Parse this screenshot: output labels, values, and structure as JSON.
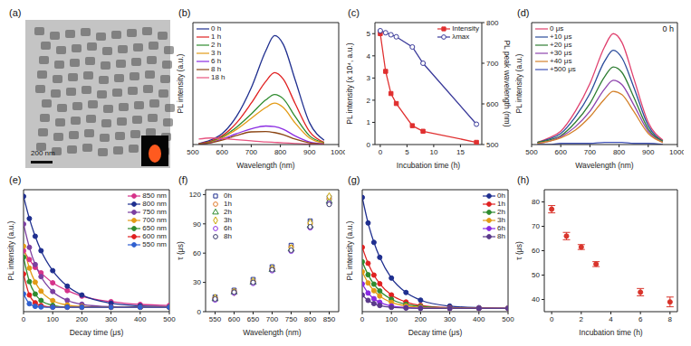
{
  "image": {
    "title": "(a)",
    "scale_bar": "200 nm"
  },
  "chart_data": [
    {
      "type": "line",
      "title": "(b)",
      "xlabel": "Wavelength (nm)",
      "ylabel": "PL intensity (a.u.)",
      "x": [
        520,
        560,
        600,
        650,
        700,
        750,
        780,
        810,
        850,
        900,
        950
      ],
      "xlim": [
        500,
        1000
      ],
      "xticks": [
        500,
        600,
        700,
        800,
        900,
        1000
      ],
      "ylim": [
        0,
        5.6
      ],
      "tick_labels": "x",
      "legend": "upper left",
      "line_style": "smooth",
      "series": [
        {
          "name": "0 h",
          "color": "#1f2f8f",
          "values": [
            0.05,
            0.2,
            0.5,
            1.3,
            2.6,
            4.3,
            5.0,
            4.6,
            3.0,
            1.0,
            0.2
          ]
        },
        {
          "name": "1 h",
          "color": "#e02020",
          "values": [
            0.04,
            0.15,
            0.4,
            1.0,
            1.9,
            2.9,
            3.3,
            3.0,
            1.9,
            0.6,
            0.1
          ]
        },
        {
          "name": "2 h",
          "color": "#2e8b2e",
          "values": [
            0.03,
            0.12,
            0.35,
            0.8,
            1.4,
            2.05,
            2.3,
            2.1,
            1.3,
            0.4,
            0.08
          ]
        },
        {
          "name": "3 h",
          "color": "#e39b16",
          "values": [
            0.03,
            0.1,
            0.3,
            0.7,
            1.2,
            1.7,
            1.9,
            1.7,
            1.0,
            0.3,
            0.06
          ]
        },
        {
          "name": "6 h",
          "color": "#8a2be2",
          "values": [
            0.02,
            0.08,
            0.25,
            0.5,
            0.72,
            0.85,
            0.82,
            0.7,
            0.4,
            0.12,
            0.03
          ]
        },
        {
          "name": "8 h",
          "color": "#8b4513",
          "values": [
            0.02,
            0.08,
            0.2,
            0.42,
            0.58,
            0.6,
            0.55,
            0.45,
            0.25,
            0.08,
            0.02
          ]
        },
        {
          "name": "18 h",
          "color": "#e75480",
          "values": [
            0.25,
            0.3,
            0.28,
            0.22,
            0.17,
            0.12,
            0.1,
            0.08,
            0.05,
            0.02,
            0.01
          ]
        }
      ]
    },
    {
      "type": "line",
      "title": "(c)",
      "xlabel": "Incubation time (h)",
      "ylabel": "PL intensity (x 10⁴, a.u.)",
      "y2label": "PL peak wavelength (nm)",
      "x": [
        0,
        1,
        2,
        3,
        6,
        8,
        18
      ],
      "xlim": [
        -1,
        19
      ],
      "xticks": [
        0,
        5,
        10,
        15
      ],
      "ylim": [
        0,
        5.5
      ],
      "yticks": [
        0,
        1,
        2,
        3,
        4,
        5
      ],
      "y2lim": [
        500,
        800
      ],
      "y2ticks": [
        500,
        600,
        700,
        800
      ],
      "legend": "upper right",
      "line_style": "solid",
      "series": [
        {
          "name": "Intensity",
          "color": "#e03030",
          "marker": "square",
          "values": [
            5.0,
            3.3,
            2.3,
            1.85,
            0.85,
            0.6,
            0.1
          ]
        },
        {
          "name": "λmax",
          "color": "#3a3a9a",
          "marker": "circle",
          "axis": "y2",
          "values": [
            780,
            775,
            770,
            765,
            740,
            700,
            550
          ]
        }
      ]
    },
    {
      "type": "line",
      "title": "(d)",
      "annotation": "0 h",
      "xlabel": "Wavelength (nm)",
      "ylabel": "PL intensity (a.u.)",
      "x": [
        520,
        560,
        600,
        650,
        700,
        750,
        780,
        810,
        850,
        900,
        950
      ],
      "xlim": [
        500,
        1000
      ],
      "xticks": [
        500,
        600,
        700,
        800,
        900,
        1000
      ],
      "ylim": [
        0,
        1.1
      ],
      "tick_labels": "x",
      "legend": "upper left",
      "line_style": "smooth",
      "series": [
        {
          "name": "0 μs",
          "color": "#e0406e",
          "values": [
            0.02,
            0.06,
            0.12,
            0.3,
            0.55,
            0.88,
            1.0,
            0.92,
            0.6,
            0.2,
            0.04
          ]
        },
        {
          "name": "+10 μs",
          "color": "#2b4c9b",
          "values": [
            0.02,
            0.05,
            0.1,
            0.25,
            0.46,
            0.75,
            0.85,
            0.78,
            0.52,
            0.17,
            0.03
          ]
        },
        {
          "name": "+20 μs",
          "color": "#2e7d32",
          "values": [
            0.02,
            0.04,
            0.08,
            0.2,
            0.37,
            0.61,
            0.7,
            0.65,
            0.43,
            0.14,
            0.03
          ]
        },
        {
          "name": "+30 μs",
          "color": "#8e44ad",
          "values": [
            0.01,
            0.03,
            0.07,
            0.16,
            0.3,
            0.5,
            0.58,
            0.54,
            0.36,
            0.12,
            0.02
          ]
        },
        {
          "name": "+40 μs",
          "color": "#d4812a",
          "values": [
            0.01,
            0.03,
            0.06,
            0.13,
            0.25,
            0.41,
            0.48,
            0.45,
            0.3,
            0.1,
            0.02
          ]
        },
        {
          "name": "+500 μs",
          "color": "#3f51b5",
          "values": [
            0.0,
            0.0,
            0.01,
            0.01,
            0.01,
            0.02,
            0.02,
            0.02,
            0.01,
            0.01,
            0.0
          ]
        }
      ]
    },
    {
      "type": "line",
      "title": "(e)",
      "xlabel": "Decay time (μs)",
      "ylabel": "PL intensity (a.u.)",
      "x": [
        0,
        20,
        40,
        60,
        100,
        150,
        200,
        300,
        400,
        500
      ],
      "xlim": [
        0,
        500
      ],
      "xticks": [
        0,
        100,
        200,
        300,
        400,
        500
      ],
      "ylim": [
        0,
        1.1
      ],
      "tick_labels": "x",
      "legend": "upper right",
      "line_style": "smooth",
      "series": [
        {
          "name": "850 nm",
          "color": "#d6338a",
          "marker": "circle",
          "values": [
            0.55,
            0.47,
            0.4,
            0.35,
            0.26,
            0.19,
            0.14,
            0.09,
            0.065,
            0.056
          ]
        },
        {
          "name": "800 nm",
          "color": "#1f2f8f",
          "marker": "circle",
          "values": [
            1.04,
            0.84,
            0.68,
            0.55,
            0.37,
            0.23,
            0.15,
            0.076,
            0.052,
            0.044
          ]
        },
        {
          "name": "750 nm",
          "color": "#7b3fa0",
          "marker": "circle",
          "values": [
            0.79,
            0.58,
            0.425,
            0.316,
            0.182,
            0.102,
            0.067,
            0.045,
            0.04,
            0.04
          ]
        },
        {
          "name": "700 nm",
          "color": "#e39b16",
          "marker": "circle",
          "values": [
            0.59,
            0.393,
            0.266,
            0.185,
            0.1,
            0.06,
            0.047,
            0.04,
            0.04,
            0.04
          ]
        },
        {
          "name": "650 nm",
          "color": "#2e8b2e",
          "marker": "circle",
          "values": [
            0.49,
            0.271,
            0.159,
            0.101,
            0.056,
            0.042,
            0.04,
            0.04,
            0.04,
            0.04
          ]
        },
        {
          "name": "600 nm",
          "color": "#e02020",
          "marker": "circle",
          "values": [
            0.34,
            0.15,
            0.08,
            0.055,
            0.041,
            0.04,
            0.04,
            0.04,
            0.04,
            0.04
          ]
        },
        {
          "name": "550 nm",
          "color": "#3060d0",
          "marker": "circle",
          "values": [
            0.16,
            0.072,
            0.048,
            0.042,
            0.04,
            0.04,
            0.04,
            0.04,
            0.04,
            0.04
          ]
        }
      ]
    },
    {
      "type": "scatter",
      "title": "(f)",
      "xlabel": "Wavelength (nm)",
      "ylabel": "τ (μs)",
      "x": [
        550,
        600,
        650,
        700,
        750,
        800,
        850
      ],
      "xlim": [
        525,
        875
      ],
      "xticks": [
        550,
        600,
        650,
        700,
        750,
        800,
        850
      ],
      "ylim": [
        0,
        125
      ],
      "yticks": [
        0,
        30,
        60,
        90,
        120
      ],
      "legend": "upper left",
      "series": [
        {
          "name": "0h",
          "color": "#1f2f8f",
          "marker": "square",
          "values": [
            15,
            22,
            33,
            46,
            68,
            93,
            117
          ]
        },
        {
          "name": "1h",
          "color": "#e0792a",
          "marker": "circle",
          "values": [
            14,
            21,
            31,
            44,
            66,
            90,
            115
          ]
        },
        {
          "name": "2h",
          "color": "#2e8b2e",
          "marker": "triangle",
          "values": [
            13,
            20,
            30,
            43,
            64,
            88,
            113
          ]
        },
        {
          "name": "3h",
          "color": "#c9a400",
          "marker": "diamond",
          "values": [
            14,
            20,
            31,
            44,
            65,
            91,
            118
          ]
        },
        {
          "name": "6h",
          "color": "#8a2be2",
          "marker": "circle",
          "values": [
            12,
            19,
            29,
            42,
            62,
            86,
            111
          ]
        },
        {
          "name": "8h",
          "color": "#333366",
          "marker": "circle",
          "values": [
            13,
            20,
            30,
            43,
            63,
            87,
            110
          ]
        }
      ]
    },
    {
      "type": "line",
      "title": "(g)",
      "xlabel": "Decay time (μs)",
      "ylabel": "PL intensity (a.u.)",
      "x": [
        0,
        20,
        40,
        60,
        100,
        150,
        200,
        300,
        400,
        500
      ],
      "xlim": [
        0,
        500
      ],
      "xticks": [
        0,
        100,
        200,
        300,
        400,
        500
      ],
      "ylim": [
        0,
        1.1
      ],
      "tick_labels": "x",
      "legend": "upper right",
      "line_style": "smooth",
      "series": [
        {
          "name": "0h",
          "color": "#1f2f8f",
          "marker": "circle",
          "values": [
            1.03,
            0.8,
            0.625,
            0.49,
            0.303,
            0.173,
            0.104,
            0.05,
            0.036,
            0.032
          ]
        },
        {
          "name": "1h",
          "color": "#e02020",
          "marker": "circle",
          "values": [
            0.58,
            0.436,
            0.33,
            0.252,
            0.151,
            0.087,
            0.056,
            0.036,
            0.031,
            0.03
          ]
        },
        {
          "name": "2h",
          "color": "#2e8b2e",
          "marker": "circle",
          "values": [
            0.45,
            0.333,
            0.248,
            0.187,
            0.112,
            0.066,
            0.047,
            0.033,
            0.03,
            0.03
          ]
        },
        {
          "name": "3h",
          "color": "#e39b16",
          "marker": "circle",
          "values": [
            0.36,
            0.259,
            0.189,
            0.141,
            0.084,
            0.052,
            0.039,
            0.031,
            0.03,
            0.03
          ]
        },
        {
          "name": "6h",
          "color": "#8a2be2",
          "marker": "circle",
          "values": [
            0.25,
            0.168,
            0.117,
            0.085,
            0.052,
            0.037,
            0.032,
            0.03,
            0.03,
            0.03
          ]
        },
        {
          "name": "8h",
          "color": "#5a3a8a",
          "marker": "circle",
          "values": [
            0.15,
            0.102,
            0.073,
            0.056,
            0.039,
            0.033,
            0.03,
            0.03,
            0.03,
            0.03
          ]
        }
      ]
    },
    {
      "type": "scatter",
      "title": "(h)",
      "xlabel": "Incubation time (h)",
      "ylabel": "τ (μs)",
      "x": [
        0,
        1,
        2,
        3,
        6,
        8
      ],
      "values": [
        77,
        66,
        61.5,
        54.5,
        43,
        39
      ],
      "errors": [
        1.5,
        1.5,
        1,
        1,
        1.5,
        2
      ],
      "color": "#d9342b",
      "marker": "circle",
      "xlim": [
        -0.5,
        8.5
      ],
      "xticks": [
        0,
        2,
        4,
        6,
        8
      ],
      "ylim": [
        35,
        85
      ],
      "yticks": [
        40,
        50,
        60,
        70,
        80
      ]
    }
  ]
}
